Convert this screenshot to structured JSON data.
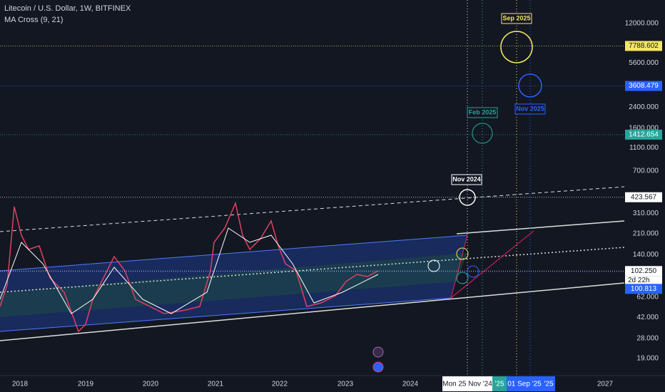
{
  "header": {
    "symbol": "Litecoin / U.S. Dollar, 1W, BITFINEX",
    "indicator": "MA Cross (9, 21)"
  },
  "price_axis": {
    "scale": "log",
    "ticks": [
      {
        "value": 12000,
        "label": "12000.000"
      },
      {
        "value": 5600,
        "label": "5600.000"
      },
      {
        "value": 2400,
        "label": "2400.000"
      },
      {
        "value": 1600,
        "label": "1600.000"
      },
      {
        "value": 1100,
        "label": "1100.000"
      },
      {
        "value": 700,
        "label": "700.000"
      },
      {
        "value": 310,
        "label": "310.000"
      },
      {
        "value": 210,
        "label": "210.000"
      },
      {
        "value": 140,
        "label": "140.000"
      },
      {
        "value": 62,
        "label": "62.000"
      },
      {
        "value": 42,
        "label": "42.000"
      },
      {
        "value": 28,
        "label": "28.000"
      },
      {
        "value": 19,
        "label": "19.000"
      }
    ],
    "levels": [
      {
        "value": 7788.602,
        "label": "7788.602",
        "color": "#f5e663"
      },
      {
        "value": 3608.479,
        "label": "3608.479",
        "color": "#2962ff"
      },
      {
        "value": 1412.654,
        "label": "1412.654",
        "color": "#26a69a"
      },
      {
        "value": 423.567,
        "label": "423.567",
        "color": "#ffffff"
      },
      {
        "value": 102.25,
        "label": "102.250",
        "color": "#ffffff",
        "countdown": "2d 22h"
      },
      {
        "value": 100.813,
        "label": "100.813",
        "color": "#2962ff"
      }
    ]
  },
  "time_axis": {
    "labels": [
      "2018",
      "2019",
      "2020",
      "2021",
      "2022",
      "2023",
      "2024",
      "2027"
    ],
    "crosshair": [
      "Mon 25 Nov '24",
      "'25",
      "01 Sep '25",
      "'25"
    ]
  },
  "annotations": [
    "Sep 2025",
    "Nov 2025",
    "Feb 2025",
    "Nov 2024"
  ]
}
